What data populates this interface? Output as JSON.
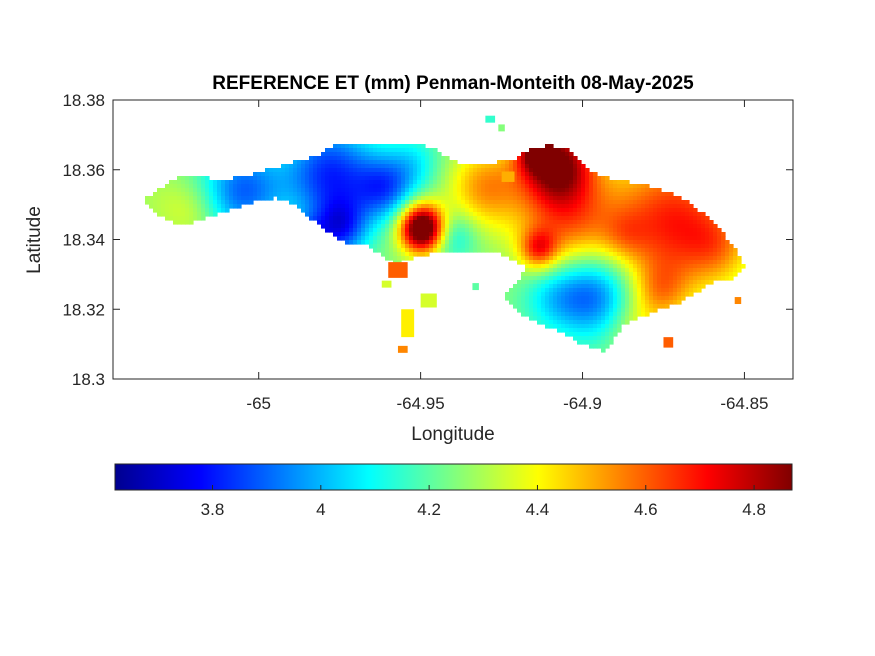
{
  "chart_data": {
    "type": "heatmap",
    "title": "REFERENCE ET (mm) Penman-Monteith 08-May-2025",
    "xlabel": "Longitude",
    "ylabel": "Latitude",
    "xlim": [
      -65.045,
      -64.835
    ],
    "ylim": [
      18.3,
      18.38
    ],
    "x_ticks": [
      {
        "value": -65.0,
        "label": "-65"
      },
      {
        "value": -64.95,
        "label": "-64.95"
      },
      {
        "value": -64.9,
        "label": "-64.9"
      },
      {
        "value": -64.85,
        "label": "-64.85"
      }
    ],
    "y_ticks": [
      {
        "value": 18.3,
        "label": "18.3"
      },
      {
        "value": 18.32,
        "label": "18.32"
      },
      {
        "value": 18.34,
        "label": "18.34"
      },
      {
        "value": 18.36,
        "label": "18.36"
      },
      {
        "value": 18.38,
        "label": "18.38"
      }
    ],
    "colorbar": {
      "colormap": "jet",
      "orientation": "horizontal",
      "placement": "below",
      "range": [
        3.62,
        4.87
      ],
      "ticks": [
        {
          "value": 3.8,
          "label": "3.8"
        },
        {
          "value": 4.0,
          "label": "4"
        },
        {
          "value": 4.2,
          "label": "4.2"
        },
        {
          "value": 4.4,
          "label": "4.4"
        },
        {
          "value": 4.6,
          "label": "4.6"
        },
        {
          "value": 4.8,
          "label": "4.8"
        }
      ]
    },
    "grid": false,
    "island_outline": [
      [
        -65.036,
        18.351
      ],
      [
        -65.03,
        18.355
      ],
      [
        -65.025,
        18.358
      ],
      [
        -65.018,
        18.358
      ],
      [
        -65.012,
        18.357
      ],
      [
        -65.005,
        18.358
      ],
      [
        -64.998,
        18.36
      ],
      [
        -64.99,
        18.362
      ],
      [
        -64.982,
        18.364
      ],
      [
        -64.977,
        18.367
      ],
      [
        -64.968,
        18.367
      ],
      [
        -64.958,
        18.367
      ],
      [
        -64.952,
        18.368
      ],
      [
        -64.946,
        18.366
      ],
      [
        -64.941,
        18.363
      ],
      [
        -64.934,
        18.361
      ],
      [
        -64.928,
        18.362
      ],
      [
        -64.921,
        18.363
      ],
      [
        -64.916,
        18.366
      ],
      [
        -64.91,
        18.367
      ],
      [
        -64.905,
        18.366
      ],
      [
        -64.9,
        18.362
      ],
      [
        -64.895,
        18.358
      ],
      [
        -64.888,
        18.357
      ],
      [
        -64.878,
        18.355
      ],
      [
        -64.872,
        18.353
      ],
      [
        -64.866,
        18.35
      ],
      [
        -64.861,
        18.346
      ],
      [
        -64.856,
        18.341
      ],
      [
        -64.852,
        18.336
      ],
      [
        -64.85,
        18.332
      ],
      [
        -64.853,
        18.329
      ],
      [
        -64.859,
        18.328
      ],
      [
        -64.865,
        18.325
      ],
      [
        -64.87,
        18.322
      ],
      [
        -64.876,
        18.32
      ],
      [
        -64.882,
        18.318
      ],
      [
        -64.887,
        18.316
      ],
      [
        -64.89,
        18.312
      ],
      [
        -64.893,
        18.308
      ],
      [
        -64.9,
        18.31
      ],
      [
        -64.906,
        18.313
      ],
      [
        -64.913,
        18.316
      ],
      [
        -64.92,
        18.319
      ],
      [
        -64.924,
        18.324
      ],
      [
        -64.92,
        18.328
      ],
      [
        -64.917,
        18.332
      ],
      [
        -64.925,
        18.336
      ],
      [
        -64.933,
        18.336
      ],
      [
        -64.942,
        18.337
      ],
      [
        -64.952,
        18.335
      ],
      [
        -64.958,
        18.333
      ],
      [
        -64.963,
        18.336
      ],
      [
        -64.967,
        18.339
      ],
      [
        -64.973,
        18.339
      ],
      [
        -64.978,
        18.342
      ],
      [
        -64.984,
        18.346
      ],
      [
        -64.989,
        18.35
      ],
      [
        -64.995,
        18.352
      ],
      [
        -65.001,
        18.351
      ],
      [
        -65.007,
        18.349
      ],
      [
        -65.014,
        18.347
      ],
      [
        -65.02,
        18.345
      ],
      [
        -65.026,
        18.345
      ],
      [
        -65.031,
        18.347
      ]
    ],
    "small_patches": [
      {
        "points": [
          [
            -64.96,
            18.3335
          ],
          [
            -64.954,
            18.3335
          ],
          [
            -64.954,
            18.329
          ],
          [
            -64.96,
            18.329
          ]
        ],
        "value": 4.6
      },
      {
        "points": [
          [
            -64.962,
            18.3282
          ],
          [
            -64.959,
            18.3282
          ],
          [
            -64.959,
            18.3262
          ],
          [
            -64.962,
            18.3262
          ]
        ],
        "value": 4.35
      },
      {
        "points": [
          [
            -64.95,
            18.3245
          ],
          [
            -64.945,
            18.3245
          ],
          [
            -64.945,
            18.3205
          ],
          [
            -64.95,
            18.3205
          ]
        ],
        "value": 4.35
      },
      {
        "points": [
          [
            -64.956,
            18.32
          ],
          [
            -64.952,
            18.32
          ],
          [
            -64.952,
            18.312
          ],
          [
            -64.956,
            18.312
          ]
        ],
        "value": 4.42
      },
      {
        "points": [
          [
            -64.957,
            18.3095
          ],
          [
            -64.954,
            18.3095
          ],
          [
            -64.954,
            18.3075
          ],
          [
            -64.957,
            18.3075
          ]
        ],
        "value": 4.55
      },
      {
        "points": [
          [
            -64.934,
            18.3275
          ],
          [
            -64.932,
            18.3275
          ],
          [
            -64.932,
            18.3255
          ],
          [
            -64.934,
            18.3255
          ]
        ],
        "value": 4.2
      },
      {
        "points": [
          [
            -64.93,
            18.3755
          ],
          [
            -64.927,
            18.3755
          ],
          [
            -64.927,
            18.3735
          ],
          [
            -64.93,
            18.3735
          ]
        ],
        "value": 4.15
      },
      {
        "points": [
          [
            -64.926,
            18.373
          ],
          [
            -64.924,
            18.373
          ],
          [
            -64.924,
            18.371
          ],
          [
            -64.926,
            18.371
          ]
        ],
        "value": 4.25
      },
      {
        "points": [
          [
            -64.925,
            18.3595
          ],
          [
            -64.921,
            18.3595
          ],
          [
            -64.921,
            18.3565
          ],
          [
            -64.925,
            18.3565
          ]
        ],
        "value": 4.5
      },
      {
        "points": [
          [
            -64.853,
            18.3235
          ],
          [
            -64.851,
            18.3235
          ],
          [
            -64.851,
            18.3215
          ],
          [
            -64.853,
            18.3215
          ]
        ],
        "value": 4.55
      },
      {
        "points": [
          [
            -64.875,
            18.312
          ],
          [
            -64.872,
            18.312
          ],
          [
            -64.872,
            18.309
          ],
          [
            -64.875,
            18.309
          ]
        ],
        "value": 4.6
      }
    ],
    "field_background_value": 4.25,
    "field_features": [
      {
        "name": "west-tip",
        "lon": -65.03,
        "lat": 18.351,
        "sigma": 0.007,
        "delta": 0.05
      },
      {
        "name": "west-central",
        "lon": -65.005,
        "lat": 18.354,
        "sigma": 0.009,
        "delta": -0.35
      },
      {
        "name": "blue-north-central",
        "lon": -64.978,
        "lat": 18.359,
        "sigma": 0.01,
        "delta": -0.42
      },
      {
        "name": "dark-blue-center",
        "lon": -64.961,
        "lat": 18.3545,
        "sigma": 0.0065,
        "delta": -0.32
      },
      {
        "name": "blue-southwest",
        "lon": -64.975,
        "lat": 18.343,
        "sigma": 0.006,
        "delta": -0.38
      },
      {
        "name": "blue-inlet",
        "lon": -64.985,
        "lat": 18.34,
        "sigma": 0.004,
        "delta": -0.3
      },
      {
        "name": "cyan-north",
        "lon": -64.952,
        "lat": 18.362,
        "sigma": 0.006,
        "delta": -0.15
      },
      {
        "name": "red-hotspot-center",
        "lon": -64.9495,
        "lat": 18.3432,
        "sigma": 0.0048,
        "delta": 0.82
      },
      {
        "name": "cyan-southcentral",
        "lon": -64.94,
        "lat": 18.341,
        "sigma": 0.005,
        "delta": -0.18
      },
      {
        "name": "red-north-east",
        "lon": -64.908,
        "lat": 18.362,
        "sigma": 0.008,
        "delta": 0.58
      },
      {
        "name": "dark-red-north",
        "lon": -64.915,
        "lat": 18.365,
        "sigma": 0.004,
        "delta": 0.3
      },
      {
        "name": "orange-neck",
        "lon": -64.93,
        "lat": 18.355,
        "sigma": 0.008,
        "delta": 0.28
      },
      {
        "name": "orange-central-east",
        "lon": -64.905,
        "lat": 18.345,
        "sigma": 0.011,
        "delta": 0.33
      },
      {
        "name": "red-spot",
        "lon": -64.9135,
        "lat": 18.3372,
        "sigma": 0.004,
        "delta": 0.32
      },
      {
        "name": "red-east",
        "lon": -64.872,
        "lat": 18.345,
        "sigma": 0.014,
        "delta": 0.43
      },
      {
        "name": "red-east-inner",
        "lon": -64.887,
        "lat": 18.341,
        "sigma": 0.005,
        "delta": 0.1
      },
      {
        "name": "red-far-east",
        "lon": -64.858,
        "lat": 18.338,
        "sigma": 0.007,
        "delta": 0.15
      },
      {
        "name": "blue-south-lobe",
        "lon": -64.897,
        "lat": 18.3245,
        "sigma": 0.009,
        "delta": -0.38
      },
      {
        "name": "cyan-south-west-lobe",
        "lon": -64.91,
        "lat": 18.324,
        "sigma": 0.007,
        "delta": -0.15
      },
      {
        "name": "yellow-south",
        "lon": -64.884,
        "lat": 18.314,
        "sigma": 0.006,
        "delta": 0.12
      },
      {
        "name": "orange-southeast",
        "lon": -64.876,
        "lat": 18.325,
        "sigma": 0.006,
        "delta": 0.2
      },
      {
        "name": "yellow-west-mid",
        "lon": -65.02,
        "lat": 18.348,
        "sigma": 0.006,
        "delta": 0.1
      }
    ]
  }
}
